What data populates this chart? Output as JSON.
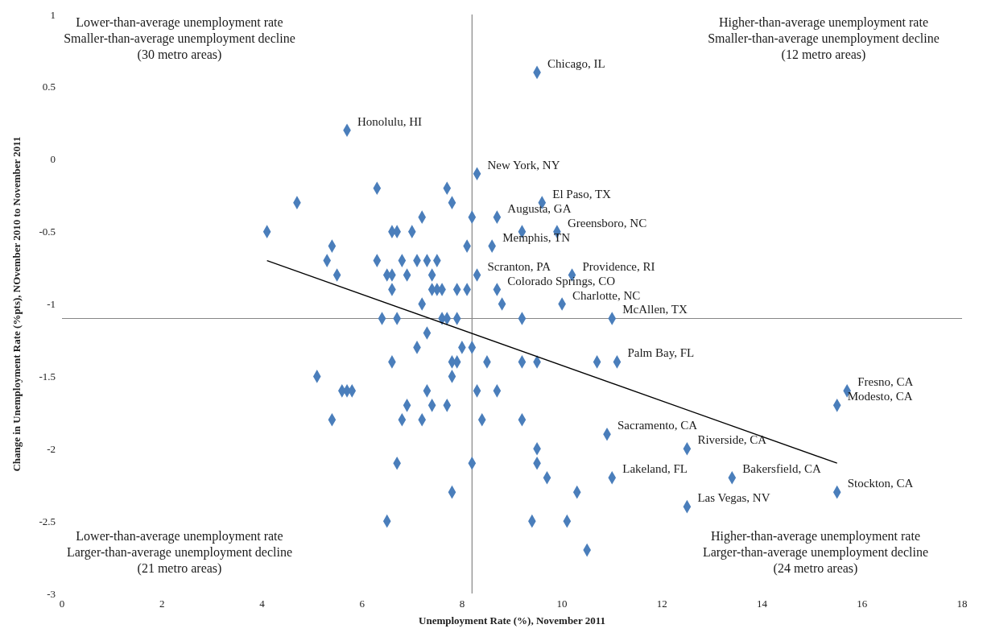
{
  "chart_data": {
    "type": "scatter",
    "xlabel": "Unemployment Rate (%), November 2011",
    "ylabel": "Change in Unemployment Rate (%pts), NOvember 2010 to November 2011",
    "xlim": [
      0,
      18
    ],
    "xticks": [
      0,
      2,
      4,
      6,
      8,
      10,
      12,
      14,
      16,
      18
    ],
    "ylim": [
      -3,
      1
    ],
    "yticks": [
      -3,
      -2.5,
      -2,
      -1.5,
      -1,
      -0.5,
      0,
      0.5,
      1
    ],
    "marker": "diamond",
    "ref_lines": [
      {
        "axis": "x",
        "value": 8.2,
        "color": "#868686"
      },
      {
        "axis": "y",
        "value": -1.1,
        "color": "#868686"
      }
    ],
    "annotations": [
      "Lower-than-average unemployment rate\nSmaller-than-average unemployment decline\n(30 metro areas)",
      "Higher-than-average unemployment rate\nSmaller-than-average unemployment decline\n(12 metro areas)",
      "Lower-than-average unemployment rate\nLarger-than-average unemployment decline\n(21 metro areas)",
      "Higher-than-average unemployment rate\nLarger-than-average unemployment decline\n(24 metro areas)"
    ],
    "series": [
      {
        "color": "#4a7ebb",
        "x": [
          5.7,
          8.3,
          6.3,
          7.7,
          4.7,
          7.8,
          7.2,
          8.2,
          4.1,
          6.6,
          6.7,
          7.0,
          5.4,
          8.1,
          5.3,
          6.3,
          6.8,
          7.1,
          7.3,
          7.5,
          5.5,
          6.5,
          6.6,
          6.9,
          7.4,
          8.3,
          6.6,
          7.4,
          7.5,
          7.6,
          7.9,
          8.1,
          7.2,
          6.4,
          6.7,
          7.6,
          7.7,
          7.9,
          7.3,
          7.1,
          8.0,
          8.2,
          6.6,
          7.8,
          7.9,
          5.1,
          7.8,
          5.6,
          5.7,
          5.8,
          7.3,
          8.3,
          6.9,
          7.4,
          7.7,
          5.4,
          6.8,
          7.2,
          8.4,
          6.7,
          8.2,
          7.8,
          6.5,
          9.6,
          8.7,
          9.2,
          9.9,
          8.6,
          10.2,
          8.7,
          8.8,
          10.0,
          9.2,
          11.0,
          8.5,
          9.2,
          9.5,
          10.7,
          11.1,
          8.7,
          9.2,
          10.9,
          9.5,
          12.5,
          9.5,
          9.7,
          11.0,
          10.3,
          12.5,
          9.4,
          10.1,
          10.5,
          15.7,
          15.5,
          13.4,
          15.5,
          9.5
        ],
        "values": [
          0.2,
          -0.1,
          -0.2,
          -0.2,
          -0.3,
          -0.3,
          -0.4,
          -0.4,
          -0.5,
          -0.5,
          -0.5,
          -0.5,
          -0.6,
          -0.6,
          -0.7,
          -0.7,
          -0.7,
          -0.7,
          -0.7,
          -0.7,
          -0.8,
          -0.8,
          -0.8,
          -0.8,
          -0.8,
          -0.8,
          -0.9,
          -0.9,
          -0.9,
          -0.9,
          -0.9,
          -0.9,
          -1.0,
          -1.1,
          -1.1,
          -1.1,
          -1.1,
          -1.1,
          -1.2,
          -1.3,
          -1.3,
          -1.3,
          -1.4,
          -1.4,
          -1.4,
          -1.5,
          -1.5,
          -1.6,
          -1.6,
          -1.6,
          -1.6,
          -1.6,
          -1.7,
          -1.7,
          -1.7,
          -1.8,
          -1.8,
          -1.8,
          -1.8,
          -2.1,
          -2.1,
          -2.3,
          -2.5,
          -0.3,
          -0.4,
          -0.5,
          -0.5,
          -0.6,
          -0.8,
          -0.9,
          -1.0,
          -1.0,
          -1.1,
          -1.1,
          -1.4,
          -1.4,
          -1.4,
          -1.4,
          -1.4,
          -1.6,
          -1.8,
          -1.9,
          -2.0,
          -2.0,
          -2.1,
          -2.2,
          -2.2,
          -2.3,
          -2.4,
          -2.5,
          -2.5,
          -2.7,
          -1.6,
          -1.7,
          -2.2,
          -2.3,
          0.6
        ],
        "value_labels": [
          "Honolulu, HI",
          "New York, NY",
          null,
          null,
          null,
          null,
          null,
          null,
          null,
          null,
          null,
          null,
          null,
          null,
          null,
          null,
          null,
          null,
          null,
          null,
          null,
          null,
          null,
          null,
          null,
          "Scranton, PA",
          null,
          null,
          null,
          null,
          null,
          null,
          null,
          null,
          null,
          null,
          null,
          null,
          null,
          null,
          null,
          null,
          null,
          null,
          null,
          null,
          null,
          null,
          null,
          null,
          null,
          null,
          null,
          null,
          null,
          null,
          null,
          null,
          null,
          null,
          null,
          null,
          null,
          "El Paso, TX",
          "Augusta, GA",
          null,
          "Greensboro, NC",
          "Memphis, TN",
          "Providence, RI",
          "Colorado Springs, CO",
          null,
          "Charlotte, NC",
          null,
          "McAllen, TX",
          null,
          null,
          null,
          null,
          "Palm Bay, FL",
          null,
          null,
          "Sacramento, CA",
          null,
          "Riverside, CA",
          null,
          null,
          "Lakeland, FL",
          null,
          "Las Vegas, NV",
          null,
          null,
          null,
          "Fresno, CA",
          "Modesto, CA",
          "Bakersfield, CA",
          "Stockton, CA",
          "Chicago, IL"
        ]
      },
      {
        "type": "line",
        "color": "#000000",
        "marker": "none",
        "x": [
          4.1,
          15.5
        ],
        "values": [
          -0.7,
          -2.1
        ]
      }
    ]
  }
}
